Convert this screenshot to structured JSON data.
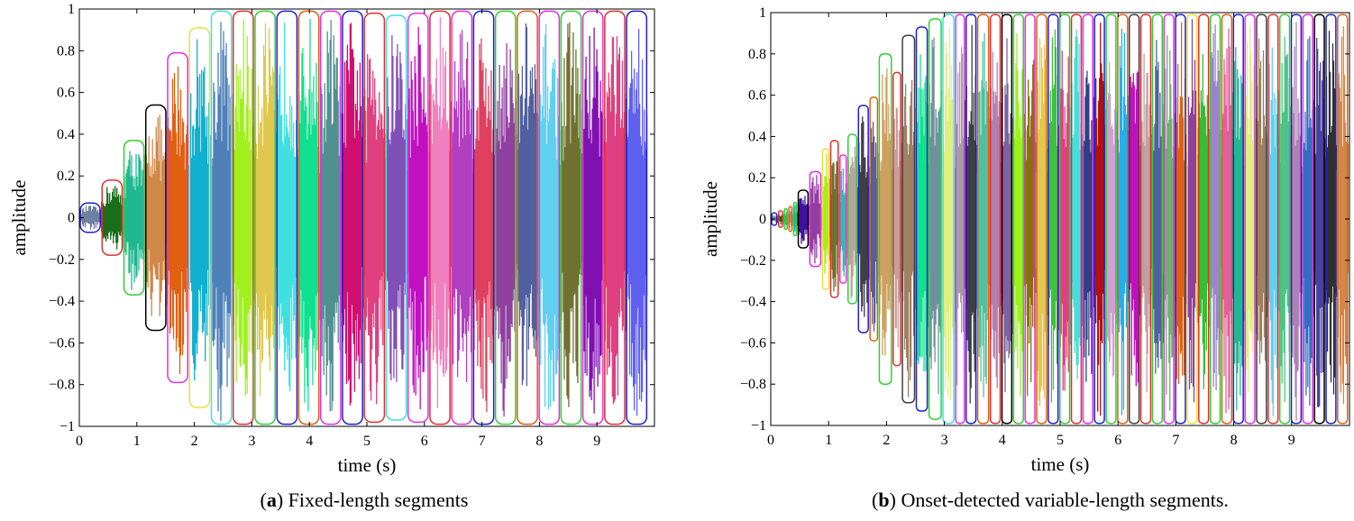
{
  "chart_data": [
    {
      "type": "line",
      "panel_letter": "a",
      "caption": "Fixed-length segments",
      "xlabel": "time (s)",
      "ylabel": "amplitude",
      "xlim": [
        0,
        10
      ],
      "ylim": [
        -1,
        1
      ],
      "x_ticks": [
        0,
        1,
        2,
        3,
        4,
        5,
        6,
        7,
        8,
        9
      ],
      "y_ticks": [
        -1,
        -0.8,
        -0.6,
        -0.4,
        -0.2,
        0,
        0.2,
        0.4,
        0.6,
        0.8,
        1
      ],
      "y_tick_labels": [
        "−1",
        "−0.8",
        "−0.6",
        "−0.4",
        "−0.2",
        "0",
        "0.2",
        "0.4",
        "0.6",
        "0.8",
        "1"
      ],
      "signal_envelope": {
        "t": [
          0,
          1,
          2,
          3,
          4,
          10
        ],
        "amp": [
          0.02,
          0.35,
          0.8,
          1.0,
          1.0,
          1.0
        ]
      },
      "segments": [
        {
          "t0": 0.0,
          "t1": 0.38,
          "amp": 0.06,
          "fill": "#7080a0",
          "box": "#2020d0"
        },
        {
          "t0": 0.38,
          "t1": 0.76,
          "amp": 0.17,
          "fill": "#1a6e1a",
          "box": "#e03030"
        },
        {
          "t0": 0.76,
          "t1": 1.14,
          "amp": 0.36,
          "fill": "#20b890",
          "box": "#30d030"
        },
        {
          "t0": 1.14,
          "t1": 1.52,
          "amp": 0.53,
          "fill": "#d08848",
          "box": "#000000"
        },
        {
          "t0": 1.52,
          "t1": 1.9,
          "amp": 0.78,
          "fill": "#e06010",
          "box": "#e030e0"
        },
        {
          "t0": 1.9,
          "t1": 2.28,
          "amp": 0.9,
          "fill": "#10b0d0",
          "box": "#e8e040"
        },
        {
          "t0": 2.28,
          "t1": 2.66,
          "amp": 0.98,
          "fill": "#5080b8",
          "box": "#40e0e0"
        },
        {
          "t0": 2.66,
          "t1": 3.04,
          "amp": 0.98,
          "fill": "#a0f020",
          "box": "#e03030"
        },
        {
          "t0": 3.04,
          "t1": 3.42,
          "amp": 0.98,
          "fill": "#e0c850",
          "box": "#30d030"
        },
        {
          "t0": 3.42,
          "t1": 3.8,
          "amp": 0.98,
          "fill": "#40e0e0",
          "box": "#2020d0"
        },
        {
          "t0": 3.8,
          "t1": 4.18,
          "amp": 0.98,
          "fill": "#10e090",
          "box": "#e06010"
        },
        {
          "t0": 4.18,
          "t1": 4.56,
          "amp": 0.98,
          "fill": "#509090",
          "box": "#e030e0"
        },
        {
          "t0": 4.56,
          "t1": 4.94,
          "amp": 0.98,
          "fill": "#d01070",
          "box": "#2020d0"
        },
        {
          "t0": 4.94,
          "t1": 5.32,
          "amp": 0.97,
          "fill": "#e04080",
          "box": "#e03030"
        },
        {
          "t0": 5.32,
          "t1": 5.7,
          "amp": 0.96,
          "fill": "#8050b8",
          "box": "#40e0e0"
        },
        {
          "t0": 5.7,
          "t1": 6.08,
          "amp": 0.97,
          "fill": "#c010c0",
          "box": "#e030e0"
        },
        {
          "t0": 6.08,
          "t1": 6.46,
          "amp": 0.98,
          "fill": "#f080c0",
          "box": "#e03030"
        },
        {
          "t0": 6.46,
          "t1": 6.84,
          "amp": 0.98,
          "fill": "#b040c0",
          "box": "#e030e0"
        },
        {
          "t0": 6.84,
          "t1": 7.22,
          "amp": 0.98,
          "fill": "#e04060",
          "box": "#2020d0"
        },
        {
          "t0": 7.22,
          "t1": 7.6,
          "amp": 0.98,
          "fill": "#9040a0",
          "box": "#30d030"
        },
        {
          "t0": 7.6,
          "t1": 7.98,
          "amp": 0.98,
          "fill": "#5060a0",
          "box": "#e06010"
        },
        {
          "t0": 7.98,
          "t1": 8.36,
          "amp": 0.98,
          "fill": "#60d0f0",
          "box": "#e030e0"
        },
        {
          "t0": 8.36,
          "t1": 8.74,
          "amp": 0.98,
          "fill": "#707030",
          "box": "#30d030"
        },
        {
          "t0": 8.74,
          "t1": 9.12,
          "amp": 0.98,
          "fill": "#8010b0",
          "box": "#e030e0"
        },
        {
          "t0": 9.12,
          "t1": 9.5,
          "amp": 0.98,
          "fill": "#e04080",
          "box": "#e03030"
        },
        {
          "t0": 9.5,
          "t1": 9.88,
          "amp": 0.98,
          "fill": "#6060f0",
          "box": "#2020d0"
        }
      ]
    },
    {
      "type": "line",
      "panel_letter": "b",
      "caption": "Onset-detected variable-length segments.",
      "xlabel": "time (s)",
      "ylabel": "amplitude",
      "xlim": [
        0,
        10
      ],
      "ylim": [
        -1,
        1
      ],
      "x_ticks": [
        0,
        1,
        2,
        3,
        4,
        5,
        6,
        7,
        8,
        9
      ],
      "y_ticks": [
        -1,
        -0.8,
        -0.6,
        -0.4,
        -0.2,
        0,
        0.2,
        0.4,
        0.6,
        0.8,
        1
      ],
      "y_tick_labels": [
        "−1",
        "−0.8",
        "−0.6",
        "−0.4",
        "−0.2",
        "0",
        "0.2",
        "0.4",
        "0.6",
        "0.8",
        "1"
      ],
      "signal_envelope": {
        "t": [
          0,
          1,
          2,
          3,
          4,
          10
        ],
        "amp": [
          0.02,
          0.35,
          0.8,
          1.0,
          1.0,
          1.0
        ]
      },
      "segments": [
        {
          "t0": 0.0,
          "t1": 0.12,
          "amp": 0.02,
          "fill": "#7080a0",
          "box": "#2020d0"
        },
        {
          "t0": 0.12,
          "t1": 0.22,
          "amp": 0.03,
          "fill": "#1a6e1a",
          "box": "#e03030"
        },
        {
          "t0": 0.22,
          "t1": 0.3,
          "amp": 0.04,
          "fill": "#20b890",
          "box": "#30d030"
        },
        {
          "t0": 0.3,
          "t1": 0.38,
          "amp": 0.05,
          "fill": "#d08848",
          "box": "#e06010"
        },
        {
          "t0": 0.38,
          "t1": 0.46,
          "amp": 0.07,
          "fill": "#10b0d0",
          "box": "#30d030"
        },
        {
          "t0": 0.46,
          "t1": 0.66,
          "amp": 0.13,
          "fill": "#4010a0",
          "box": "#000000"
        },
        {
          "t0": 0.66,
          "t1": 0.88,
          "amp": 0.22,
          "fill": "#9040a0",
          "box": "#e030e0"
        },
        {
          "t0": 0.88,
          "t1": 1.02,
          "amp": 0.33,
          "fill": "#a0f020",
          "box": "#e8e040"
        },
        {
          "t0": 1.02,
          "t1": 1.18,
          "amp": 0.37,
          "fill": "#707030",
          "box": "#e03030"
        },
        {
          "t0": 1.18,
          "t1": 1.32,
          "amp": 0.3,
          "fill": "#30c0a0",
          "box": "#e030e0"
        },
        {
          "t0": 1.32,
          "t1": 1.5,
          "amp": 0.4,
          "fill": "#c0a0a0",
          "box": "#30d030"
        },
        {
          "t0": 1.5,
          "t1": 1.7,
          "amp": 0.54,
          "fill": "#404040",
          "box": "#2020d0"
        },
        {
          "t0": 1.7,
          "t1": 1.86,
          "amp": 0.58,
          "fill": "#5060a0",
          "box": "#e06010"
        },
        {
          "t0": 1.86,
          "t1": 2.1,
          "amp": 0.79,
          "fill": "#d0a060",
          "box": "#30d030"
        },
        {
          "t0": 2.1,
          "t1": 2.26,
          "amp": 0.7,
          "fill": "#c0a0a0",
          "box": "#e03030"
        },
        {
          "t0": 2.26,
          "t1": 2.5,
          "amp": 0.88,
          "fill": "#a08060",
          "box": "#404040"
        },
        {
          "t0": 2.5,
          "t1": 2.72,
          "amp": 0.92,
          "fill": "#10e090",
          "box": "#2020d0"
        },
        {
          "t0": 2.72,
          "t1": 2.96,
          "amp": 0.96,
          "fill": "#7090a0",
          "box": "#30d030"
        },
        {
          "t0": 2.96,
          "t1": 3.18,
          "amp": 0.98,
          "fill": "#e0f080",
          "box": "#40e0e0"
        },
        {
          "t0": 3.18,
          "t1": 3.36,
          "amp": 0.98,
          "fill": "#a0a0a0",
          "box": "#e030e0"
        },
        {
          "t0": 3.36,
          "t1": 3.56,
          "amp": 0.98,
          "fill": "#404040",
          "box": "#2020d0"
        },
        {
          "t0": 3.56,
          "t1": 3.78,
          "amp": 0.98,
          "fill": "#50c0a0",
          "box": "#e06010"
        },
        {
          "t0": 3.78,
          "t1": 3.98,
          "amp": 0.98,
          "fill": "#b080b0",
          "box": "#e03030"
        },
        {
          "t0": 3.98,
          "t1": 4.18,
          "amp": 0.98,
          "fill": "#8060a0",
          "box": "#000000"
        },
        {
          "t0": 4.18,
          "t1": 4.38,
          "amp": 0.98,
          "fill": "#a0f020",
          "box": "#30d030"
        },
        {
          "t0": 4.38,
          "t1": 4.58,
          "amp": 0.98,
          "fill": "#8a7010",
          "box": "#e030e0"
        },
        {
          "t0": 4.58,
          "t1": 4.78,
          "amp": 0.98,
          "fill": "#e0c850",
          "box": "#e06010"
        },
        {
          "t0": 4.78,
          "t1": 4.98,
          "amp": 0.98,
          "fill": "#40c040",
          "box": "#2020d0"
        },
        {
          "t0": 4.98,
          "t1": 5.18,
          "amp": 0.98,
          "fill": "#e04080",
          "box": "#30d030"
        },
        {
          "t0": 5.18,
          "t1": 5.38,
          "amp": 0.98,
          "fill": "#40e0e0",
          "box": "#e03030"
        },
        {
          "t0": 5.38,
          "t1": 5.58,
          "amp": 0.98,
          "fill": "#304080",
          "box": "#e030e0"
        },
        {
          "t0": 5.58,
          "t1": 5.78,
          "amp": 0.98,
          "fill": "#b01010",
          "box": "#2020d0"
        },
        {
          "t0": 5.78,
          "t1": 5.98,
          "amp": 0.98,
          "fill": "#d0a0d0",
          "box": "#30d030"
        },
        {
          "t0": 5.98,
          "t1": 6.18,
          "amp": 0.98,
          "fill": "#20b0f0",
          "box": "#e06010"
        },
        {
          "t0": 6.18,
          "t1": 6.38,
          "amp": 0.98,
          "fill": "#c010c0",
          "box": "#404040"
        },
        {
          "t0": 6.38,
          "t1": 6.58,
          "amp": 0.98,
          "fill": "#c0a0a0",
          "box": "#e03030"
        },
        {
          "t0": 6.58,
          "t1": 6.78,
          "amp": 0.98,
          "fill": "#5060a0",
          "box": "#30d030"
        },
        {
          "t0": 6.78,
          "t1": 6.98,
          "amp": 0.98,
          "fill": "#70b070",
          "box": "#e030e0"
        },
        {
          "t0": 6.98,
          "t1": 7.18,
          "amp": 0.98,
          "fill": "#e06010",
          "box": "#2020d0"
        },
        {
          "t0": 7.18,
          "t1": 7.38,
          "amp": 0.98,
          "fill": "#9040a0",
          "box": "#e8e040"
        },
        {
          "t0": 7.38,
          "t1": 7.58,
          "amp": 0.98,
          "fill": "#30c030",
          "box": "#e03030"
        },
        {
          "t0": 7.58,
          "t1": 7.78,
          "amp": 0.98,
          "fill": "#a080d0",
          "box": "#30d030"
        },
        {
          "t0": 7.78,
          "t1": 7.98,
          "amp": 0.98,
          "fill": "#e060a0",
          "box": "#e06010"
        },
        {
          "t0": 7.98,
          "t1": 8.18,
          "amp": 0.98,
          "fill": "#20b890",
          "box": "#2020d0"
        },
        {
          "t0": 8.18,
          "t1": 8.38,
          "amp": 0.98,
          "fill": "#e0f080",
          "box": "#e030e0"
        },
        {
          "t0": 8.38,
          "t1": 8.58,
          "amp": 0.98,
          "fill": "#a08060",
          "box": "#404040"
        },
        {
          "t0": 8.58,
          "t1": 8.78,
          "amp": 0.98,
          "fill": "#60d0f0",
          "box": "#e03030"
        },
        {
          "t0": 8.78,
          "t1": 8.98,
          "amp": 0.98,
          "fill": "#50c090",
          "box": "#30d030"
        },
        {
          "t0": 8.98,
          "t1": 9.18,
          "amp": 0.98,
          "fill": "#b080b0",
          "box": "#2020d0"
        },
        {
          "t0": 9.18,
          "t1": 9.38,
          "amp": 0.98,
          "fill": "#3070c0",
          "box": "#e030e0"
        },
        {
          "t0": 9.38,
          "t1": 9.58,
          "amp": 0.98,
          "fill": "#4a40a0",
          "box": "#000000"
        },
        {
          "t0": 9.58,
          "t1": 9.78,
          "amp": 0.98,
          "fill": "#303030",
          "box": "#2020d0"
        },
        {
          "t0": 9.78,
          "t1": 9.98,
          "amp": 0.98,
          "fill": "#d08848",
          "box": "#e06010"
        }
      ]
    }
  ]
}
